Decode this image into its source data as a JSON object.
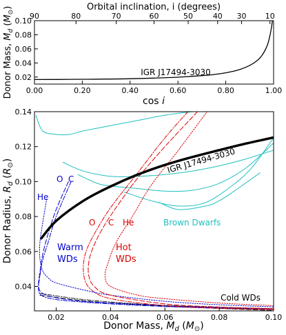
{
  "chart_data": [
    {
      "type": "line",
      "top_axis_label": "Orbital inclination, i (degrees)",
      "top_ticks": [
        90,
        80,
        70,
        60,
        50,
        40,
        30,
        10
      ],
      "xlabel": "cos i",
      "ylabel": "Donor Mass, M_d (M⊙)",
      "xlim": [
        0.0,
        1.0
      ],
      "ylim": [
        0.01,
        0.1
      ],
      "x_ticks": [
        "0.00",
        "0.20",
        "0.40",
        "0.60",
        "0.80",
        "1.00"
      ],
      "y_ticks": [
        "0.02",
        "0.04",
        "0.06",
        "0.08",
        "0.10"
      ],
      "annotation": "IGR J17494-3030",
      "series": [
        {
          "x": [
            0.0,
            0.1,
            0.2,
            0.3,
            0.4,
            0.5,
            0.6,
            0.7,
            0.75,
            0.8,
            0.85,
            0.9,
            0.93,
            0.95,
            0.97,
            0.98,
            0.99,
            0.995
          ],
          "y": [
            0.0165,
            0.0166,
            0.0168,
            0.0171,
            0.0176,
            0.0185,
            0.0198,
            0.022,
            0.0236,
            0.026,
            0.0298,
            0.0365,
            0.043,
            0.05,
            0.062,
            0.072,
            0.088,
            0.1
          ]
        }
      ]
    },
    {
      "type": "line",
      "xlabel": "Donor Mass, M_d (M⊙)",
      "ylabel": "Donor Radius, R_d (R⊙)",
      "xlim": [
        0.012,
        0.1
      ],
      "ylim": [
        0.026,
        0.14
      ],
      "x_ticks": [
        "0.02",
        "0.04",
        "0.06",
        "0.08",
        "0.10"
      ],
      "y_ticks": [
        "0.04",
        "0.06",
        "0.08",
        "0.10",
        "0.12",
        "0.14"
      ],
      "colors": {
        "blue": "#0000cc",
        "red": "#dd0000",
        "cyan": "#1fbfbf",
        "black": "#000000"
      },
      "labels": {
        "igr": "IGR J17494-3030",
        "warm_o": "O",
        "warm_c": "C",
        "warm_he": "He",
        "warm_wds": [
          "Warm",
          "WDs"
        ],
        "hot_o": "O",
        "hot_c": "C",
        "hot_he": "He",
        "hot_wds": [
          "Hot",
          "WDs"
        ],
        "brown_dwarfs": "Brown Dwarfs",
        "cold_wds": "Cold WDs"
      },
      "series": [
        {
          "group": "igr",
          "color": "#000000",
          "dash": "",
          "width": 3.5,
          "x": [
            0.0145,
            0.02,
            0.03,
            0.04,
            0.05,
            0.06,
            0.07,
            0.08,
            0.09,
            0.1
          ],
          "y": [
            0.0675,
            0.0775,
            0.089,
            0.0972,
            0.104,
            0.1095,
            0.114,
            0.118,
            0.1218,
            0.1252
          ]
        },
        {
          "group": "warm",
          "color": "#0000cc",
          "dash": "6,2,1.5,2",
          "width": 1,
          "x": [
            0.0255,
            0.02,
            0.017,
            0.015,
            0.014,
            0.0135,
            0.015,
            0.02,
            0.03,
            0.04,
            0.06,
            0.08,
            0.1
          ],
          "y": [
            0.1,
            0.08,
            0.065,
            0.055,
            0.046,
            0.038,
            0.0345,
            0.0325,
            0.031,
            0.03,
            0.0285,
            0.0275,
            0.0268
          ]
        },
        {
          "group": "warm",
          "color": "#0000cc",
          "dash": "7,3",
          "width": 1,
          "x": [
            0.0245,
            0.02,
            0.017,
            0.015,
            0.014,
            0.0135,
            0.015,
            0.02,
            0.03,
            0.04,
            0.06,
            0.08,
            0.1
          ],
          "y": [
            0.1,
            0.084,
            0.07,
            0.058,
            0.048,
            0.04,
            0.036,
            0.0335,
            0.0315,
            0.0305,
            0.029,
            0.028,
            0.0272
          ]
        },
        {
          "group": "warm",
          "color": "#0000cc",
          "dash": "1.5,2",
          "width": 1,
          "x": [
            0.0165,
            0.015,
            0.014,
            0.014,
            0.015,
            0.017,
            0.02,
            0.03,
            0.04,
            0.06,
            0.08,
            0.1
          ],
          "y": [
            0.09,
            0.076,
            0.065,
            0.056,
            0.049,
            0.045,
            0.042,
            0.038,
            0.035,
            0.0315,
            0.0295,
            0.0283
          ]
        },
        {
          "group": "hot",
          "color": "#dd0000",
          "dash": "6,2,1.5,2",
          "width": 1,
          "x": [
            0.0685,
            0.06,
            0.05,
            0.04,
            0.034,
            0.031,
            0.03,
            0.0305,
            0.033,
            0.04,
            0.06,
            0.08,
            0.1
          ],
          "y": [
            0.14,
            0.125,
            0.105,
            0.085,
            0.07,
            0.06,
            0.052,
            0.044,
            0.038,
            0.033,
            0.029,
            0.0275,
            0.0268
          ]
        },
        {
          "group": "hot",
          "color": "#dd0000",
          "dash": "7,3",
          "width": 1,
          "x": [
            0.072,
            0.06,
            0.05,
            0.042,
            0.037,
            0.0335,
            0.032,
            0.032,
            0.034,
            0.04,
            0.06,
            0.08,
            0.1
          ],
          "y": [
            0.14,
            0.12,
            0.102,
            0.085,
            0.073,
            0.062,
            0.054,
            0.046,
            0.04,
            0.035,
            0.03,
            0.0282,
            0.0273
          ]
        },
        {
          "group": "hot",
          "color": "#dd0000",
          "dash": "1.5,2",
          "width": 1,
          "x": [
            0.0755,
            0.065,
            0.055,
            0.048,
            0.042,
            0.039,
            0.038,
            0.04,
            0.05,
            0.06,
            0.08,
            0.1
          ],
          "y": [
            0.14,
            0.118,
            0.098,
            0.08,
            0.065,
            0.053,
            0.046,
            0.04,
            0.035,
            0.033,
            0.0305,
            0.029
          ]
        },
        {
          "group": "bd",
          "color": "#1fbfbf",
          "dash": "",
          "width": 1,
          "x": [
            0.0125,
            0.015,
            0.02,
            0.025,
            0.03,
            0.04,
            0.05,
            0.06,
            0.07
          ],
          "y": [
            0.138,
            0.129,
            0.127,
            0.127,
            0.129,
            0.132,
            0.135,
            0.138,
            0.14
          ]
        },
        {
          "group": "bd",
          "color": "#1fbfbf",
          "dash": "",
          "width": 1,
          "x": [
            0.0225,
            0.03,
            0.04,
            0.05,
            0.06,
            0.07,
            0.08,
            0.09,
            0.1
          ],
          "y": [
            0.111,
            0.106,
            0.103,
            0.103,
            0.104,
            0.106,
            0.109,
            0.113,
            0.118
          ]
        },
        {
          "group": "bd",
          "color": "#1fbfbf",
          "dash": "",
          "width": 1,
          "x": [
            0.028,
            0.035,
            0.04,
            0.05,
            0.06,
            0.07,
            0.08,
            0.09,
            0.1
          ],
          "y": [
            0.104,
            0.099,
            0.0975,
            0.096,
            0.0945,
            0.095,
            0.099,
            0.108,
            0.122
          ]
        },
        {
          "group": "bd",
          "color": "#1fbfbf",
          "dash": "",
          "width": 1,
          "x": [
            0.045,
            0.055,
            0.065,
            0.075,
            0.085,
            0.092,
            0.1
          ],
          "y": [
            0.094,
            0.089,
            0.086,
            0.088,
            0.098,
            0.108,
            0.125
          ]
        },
        {
          "group": "bd",
          "color": "#1fbfbf",
          "dash": "",
          "width": 1,
          "x": [
            0.058,
            0.065,
            0.075,
            0.08,
            0.085,
            0.095
          ],
          "y": [
            0.088,
            0.084,
            0.086,
            0.089,
            0.094,
            0.105
          ]
        },
        {
          "group": "cold",
          "color": "#222222",
          "dash": "6,2,1.5,2",
          "width": 1,
          "x": [
            0.014,
            0.03,
            0.05,
            0.07,
            0.1
          ],
          "y": [
            0.036,
            0.0325,
            0.03,
            0.0285,
            0.0268
          ]
        },
        {
          "group": "cold",
          "color": "#222222",
          "dash": "7,3",
          "width": 1,
          "x": [
            0.014,
            0.03,
            0.05,
            0.07,
            0.1
          ],
          "y": [
            0.035,
            0.0318,
            0.0295,
            0.028,
            0.0262
          ]
        }
      ]
    }
  ]
}
